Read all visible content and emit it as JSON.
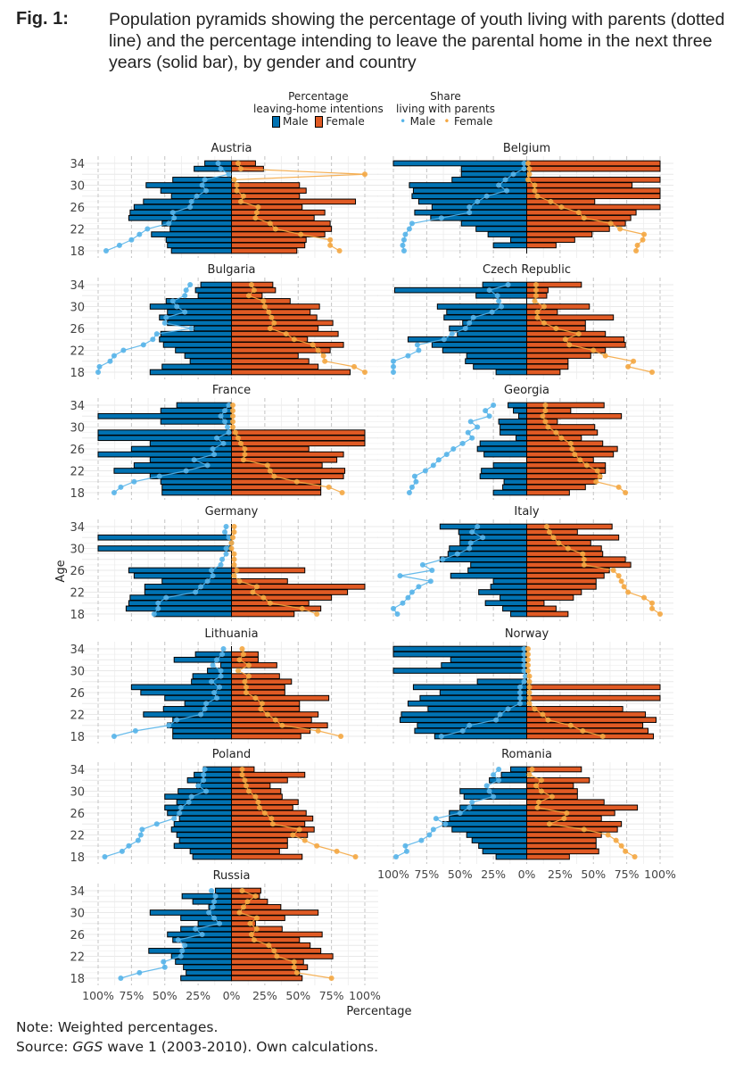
{
  "figure": {
    "label": "Fig. 1:",
    "title": "Population pyramids showing the percentage of youth living with parents (dotted line) and the percentage intending to leave the parental home in the next three years (solid bar), by gender and country"
  },
  "legend": {
    "bars_title": "Percentage\nleaving-home intentions",
    "bars_title_line1": "Percentage",
    "bars_title_line2": "leaving-home intentions",
    "points_title_line1": "Share",
    "points_title_line2": "living with parents",
    "male_label": "Male",
    "female_label": "Female"
  },
  "notes": {
    "note": "Note: Weighted percentages.",
    "source_prefix": "Source: ",
    "source_italic": "GGS",
    "source_suffix": " wave 1 (2003-2010). Own calculations."
  },
  "colors": {
    "male_bar": "#0072B2",
    "female_bar": "#E05A24",
    "male_point": "#56B4E9",
    "female_point": "#F4A742",
    "grid": "#e6e6e6",
    "grid_dashed": "#bdbdbd"
  },
  "chart_data": {
    "type": "bar",
    "subtype": "population-pyramid-faceted",
    "title": "",
    "xlabel": "Percentage",
    "ylabel": "Age",
    "xlim": [
      -100,
      100
    ],
    "x_tick_labels": [
      "100%",
      "75%",
      "50%",
      "25%",
      "0%",
      "25%",
      "50%",
      "75%",
      "100%"
    ],
    "ylim": [
      18,
      34
    ],
    "y_tick_labels": [
      "18",
      "22",
      "26",
      "30",
      "34"
    ],
    "ages": [
      34,
      33,
      32,
      31,
      30,
      29,
      28,
      27,
      26,
      25,
      24,
      23,
      22,
      21,
      20,
      19,
      18
    ],
    "grid": true,
    "legend_position": "top",
    "series_names": [
      "Leaving-home intentions Male (bar)",
      "Leaving-home intentions Female (bar)",
      "Living with parents Male (point)",
      "Living with parents Female (point)"
    ],
    "panels": [
      {
        "country": "Austria",
        "male_bar": [
          20,
          28,
          0,
          44,
          64,
          53,
          45,
          66,
          73,
          76,
          77,
          52,
          46,
          60,
          49,
          48,
          45
        ],
        "female_bar": [
          18,
          24,
          0,
          0,
          51,
          56,
          51,
          93,
          53,
          70,
          62,
          74,
          75,
          70,
          56,
          55,
          49
        ],
        "male_point": [
          10,
          8,
          2,
          20,
          22,
          19,
          26,
          30,
          31,
          44,
          43,
          47,
          63,
          69,
          75,
          84,
          94
        ],
        "female_point": [
          5,
          7,
          100,
          2,
          4,
          4,
          9,
          7,
          20,
          19,
          18,
          29,
          33,
          52,
          74,
          74,
          81
        ]
      },
      {
        "country": "Belgium",
        "male_bar": [
          100,
          49,
          49,
          56,
          88,
          85,
          86,
          81,
          71,
          84,
          72,
          49,
          38,
          29,
          12,
          25,
          0
        ],
        "female_bar": [
          100,
          100,
          0,
          100,
          79,
          100,
          100,
          51,
          100,
          82,
          78,
          74,
          62,
          49,
          36,
          22,
          0
        ],
        "male_point": [
          2,
          2,
          10,
          16,
          21,
          15,
          30,
          37,
          43,
          43,
          64,
          86,
          88,
          91,
          92,
          93,
          92
        ],
        "female_point": [
          1,
          2,
          2,
          1,
          6,
          6,
          8,
          18,
          26,
          39,
          43,
          63,
          70,
          88,
          87,
          83,
          82
        ]
      },
      {
        "country": "Bulgaria",
        "male_bar": [
          23,
          27,
          25,
          49,
          61,
          48,
          54,
          48,
          28,
          53,
          54,
          51,
          42,
          35,
          31,
          52,
          61
        ],
        "female_bar": [
          31,
          33,
          23,
          44,
          66,
          59,
          64,
          76,
          65,
          80,
          57,
          84,
          74,
          50,
          58,
          65,
          89
        ],
        "male_point": [
          31,
          34,
          35,
          44,
          41,
          35,
          49,
          50,
          30,
          56,
          59,
          66,
          81,
          88,
          91,
          99,
          100
        ],
        "female_point": [
          15,
          17,
          13,
          24,
          25,
          28,
          30,
          32,
          29,
          41,
          47,
          61,
          65,
          69,
          70,
          92,
          115
        ]
      },
      {
        "country": "Czech Republic",
        "male_bar": [
          33,
          99,
          38,
          0,
          67,
          60,
          62,
          48,
          58,
          52,
          89,
          71,
          63,
          45,
          46,
          40,
          23
        ],
        "female_bar": [
          41,
          16,
          15,
          0,
          47,
          23,
          65,
          44,
          44,
          59,
          73,
          74,
          59,
          48,
          31,
          31,
          25
        ],
        "male_point": [
          14,
          28,
          22,
          21,
          19,
          26,
          40,
          43,
          46,
          56,
          62,
          82,
          81,
          89,
          100,
          113,
          118
        ],
        "female_point": [
          7,
          7,
          7,
          6,
          13,
          8,
          8,
          13,
          22,
          39,
          29,
          32,
          50,
          59,
          80,
          76,
          94
        ]
      },
      {
        "country": "France",
        "male_bar": [
          41,
          53,
          100,
          53,
          0,
          100,
          100,
          61,
          75,
          100,
          61,
          73,
          88,
          61,
          53,
          52,
          52
        ],
        "female_bar": [
          0,
          0,
          0,
          0,
          0,
          100,
          100,
          100,
          58,
          84,
          79,
          68,
          85,
          84,
          67,
          67,
          67
        ],
        "male_point": [
          2,
          5,
          8,
          5,
          3,
          2,
          11,
          6,
          14,
          13,
          28,
          18,
          34,
          54,
          73,
          83,
          88
        ],
        "female_point": [
          1,
          1,
          1,
          1,
          1,
          3,
          5,
          7,
          10,
          10,
          9,
          27,
          29,
          32,
          49,
          73,
          83
        ]
      },
      {
        "country": "Georgia",
        "male_bar": [
          14,
          10,
          6,
          21,
          20,
          20,
          8,
          35,
          37,
          32,
          0,
          25,
          34,
          35,
          17,
          18,
          25
        ],
        "female_bar": [
          58,
          33,
          71,
          23,
          51,
          53,
          41,
          57,
          68,
          65,
          50,
          59,
          59,
          56,
          52,
          44,
          32
        ],
        "male_point": [
          25,
          31,
          28,
          42,
          37,
          44,
          41,
          48,
          55,
          60,
          66,
          70,
          76,
          84,
          83,
          86,
          88
        ],
        "female_point": [
          14,
          14,
          12,
          14,
          16,
          22,
          26,
          33,
          34,
          36,
          40,
          45,
          53,
          55,
          52,
          69,
          74
        ]
      },
      {
        "country": "Germany",
        "male_bar": [
          0,
          0,
          100,
          0,
          100,
          0,
          0,
          0,
          77,
          73,
          52,
          65,
          65,
          76,
          77,
          79,
          58
        ],
        "female_bar": [
          0,
          0,
          0,
          0,
          0,
          0,
          0,
          0,
          55,
          0,
          42,
          100,
          87,
          75,
          58,
          67,
          47
        ],
        "male_point": [
          4,
          5,
          2,
          0,
          4,
          4,
          7,
          8,
          15,
          14,
          18,
          23,
          27,
          49,
          55,
          55,
          58
        ],
        "female_point": [
          2,
          2,
          1,
          0,
          0,
          2,
          2,
          2,
          4,
          2,
          6,
          19,
          16,
          24,
          29,
          53,
          64
        ]
      },
      {
        "country": "Italy",
        "male_bar": [
          65,
          51,
          50,
          50,
          58,
          59,
          65,
          42,
          44,
          57,
          25,
          27,
          36,
          20,
          31,
          18,
          12
        ],
        "female_bar": [
          64,
          38,
          69,
          48,
          56,
          57,
          74,
          78,
          62,
          58,
          52,
          52,
          41,
          35,
          13,
          22,
          31
        ],
        "male_point": [
          37,
          41,
          33,
          42,
          43,
          52,
          63,
          78,
          71,
          95,
          72,
          81,
          86,
          89,
          93,
          100,
          97
        ],
        "female_point": [
          15,
          17,
          20,
          24,
          31,
          42,
          43,
          43,
          65,
          69,
          71,
          73,
          76,
          88,
          94,
          94,
          100
        ]
      },
      {
        "country": "Lithuania",
        "male_bar": [
          0,
          27,
          43,
          8,
          18,
          29,
          30,
          75,
          68,
          50,
          35,
          51,
          66,
          44,
          48,
          44,
          44
        ],
        "female_bar": [
          0,
          20,
          20,
          34,
          0,
          36,
          45,
          40,
          40,
          73,
          51,
          51,
          65,
          60,
          72,
          59,
          52
        ],
        "male_point": [
          6,
          7,
          11,
          14,
          8,
          8,
          15,
          9,
          13,
          11,
          19,
          20,
          23,
          41,
          47,
          72,
          88
        ],
        "female_point": [
          8,
          9,
          6,
          13,
          5,
          13,
          10,
          11,
          11,
          18,
          23,
          22,
          27,
          33,
          38,
          65,
          82
        ]
      },
      {
        "country": "Norway",
        "male_bar": [
          100,
          100,
          57,
          64,
          100,
          0,
          37,
          85,
          65,
          80,
          89,
          74,
          94,
          95,
          82,
          84,
          69
        ],
        "female_bar": [
          0,
          0,
          0,
          0,
          0,
          0,
          0,
          100,
          0,
          100,
          0,
          72,
          89,
          97,
          87,
          91,
          95
        ],
        "male_point": [
          2,
          2,
          2,
          2,
          2,
          1,
          2,
          5,
          5,
          5,
          5,
          14,
          20,
          23,
          43,
          48,
          64
        ],
        "female_point": [
          1,
          1,
          1,
          1,
          1,
          2,
          2,
          2,
          2,
          2,
          2,
          6,
          12,
          16,
          33,
          42,
          57
        ]
      },
      {
        "country": "Poland",
        "male_bar": [
          21,
          28,
          33,
          26,
          40,
          50,
          41,
          50,
          48,
          39,
          43,
          45,
          41,
          39,
          43,
          31,
          29
        ],
        "female_bar": [
          17,
          55,
          42,
          29,
          37,
          38,
          50,
          46,
          56,
          61,
          55,
          62,
          57,
          42,
          42,
          36,
          53
        ],
        "male_point": [
          20,
          21,
          21,
          25,
          19,
          30,
          32,
          38,
          39,
          43,
          56,
          67,
          68,
          70,
          77,
          82,
          95
        ],
        "female_point": [
          8,
          8,
          10,
          11,
          13,
          18,
          20,
          21,
          25,
          30,
          31,
          51,
          46,
          55,
          64,
          79,
          93
        ]
      },
      {
        "country": "Romania",
        "male_bar": [
          12,
          19,
          28,
          0,
          50,
          47,
          0,
          50,
          58,
          58,
          63,
          56,
          45,
          41,
          36,
          33,
          23
        ],
        "female_bar": [
          41,
          0,
          47,
          35,
          38,
          38,
          58,
          83,
          66,
          56,
          71,
          68,
          56,
          52,
          52,
          54,
          32
        ],
        "male_point": [
          21,
          25,
          21,
          30,
          28,
          25,
          41,
          43,
          50,
          68,
          61,
          70,
          73,
          79,
          91,
          90,
          98
        ],
        "female_point": [
          4,
          2,
          11,
          7,
          11,
          19,
          9,
          8,
          30,
          28,
          17,
          43,
          61,
          67,
          71,
          74,
          81
        ]
      },
      {
        "country": "Russia",
        "male_bar": [
          12,
          37,
          29,
          17,
          61,
          38,
          25,
          38,
          48,
          44,
          35,
          62,
          45,
          42,
          36,
          34,
          38
        ],
        "female_bar": [
          22,
          21,
          27,
          37,
          65,
          40,
          18,
          38,
          68,
          51,
          59,
          67,
          76,
          54,
          57,
          51,
          53
        ],
        "male_point": [
          15,
          12,
          13,
          14,
          17,
          13,
          9,
          27,
          22,
          40,
          35,
          37,
          38,
          51,
          50,
          69,
          83
        ],
        "female_point": [
          8,
          18,
          12,
          9,
          6,
          19,
          14,
          19,
          15,
          17,
          28,
          32,
          34,
          47,
          47,
          49,
          75
        ]
      }
    ]
  }
}
